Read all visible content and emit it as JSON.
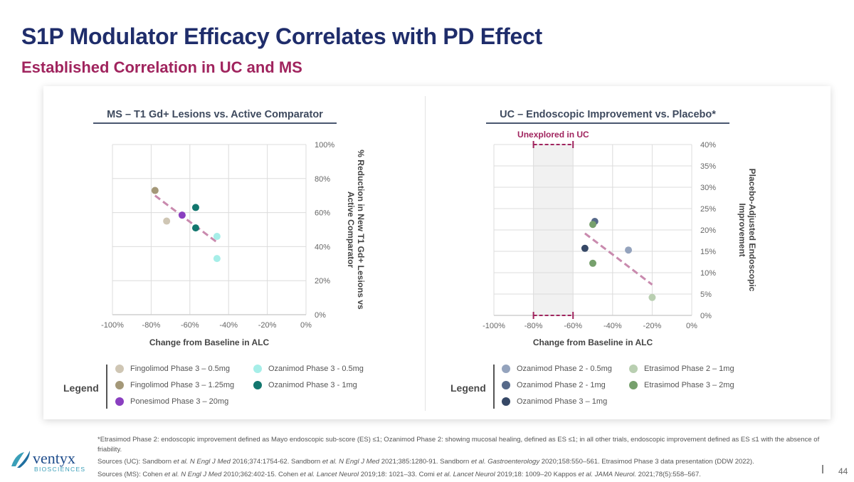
{
  "header": {
    "title": "S1P Modulator Efficacy Correlates with PD Effect",
    "subtitle": "Established Correlation in UC and MS"
  },
  "colors": {
    "title": "#1f2d6b",
    "subtitle": "#a0245e",
    "trendline": "#c98aae",
    "unexplored_marker": "#a0245e"
  },
  "chart_data": [
    {
      "id": "ms",
      "type": "scatter",
      "title": "MS – T1 Gd+ Lesions vs. Active Comparator",
      "xlabel": "Change from Baseline in ALC",
      "ylabel": "% Reduction in New T1 Gd+ Lesions vs Active Comparator",
      "xlim": [
        -100,
        0
      ],
      "ylim": [
        0,
        100
      ],
      "x_ticks": [
        -100,
        -80,
        -60,
        -40,
        -20,
        0
      ],
      "y_ticks": [
        0,
        20,
        40,
        60,
        80,
        100
      ],
      "x_tick_labels": [
        "-100%",
        "-80%",
        "-60%",
        "-40%",
        "-20%",
        "0%"
      ],
      "y_tick_labels": [
        "0%",
        "20%",
        "40%",
        "60%",
        "80%",
        "100%"
      ],
      "grid": true,
      "legend_title": "Legend",
      "legend_position": "bottom",
      "series": [
        {
          "name": "Fingolimod Phase 3 – 0.5mg",
          "color": "#cfc6b4",
          "points": [
            [
              -72,
              55
            ]
          ]
        },
        {
          "name": "Ozanimod Phase 3 - 0.5mg",
          "color": "#a6eee8",
          "points": [
            [
              -46,
              46
            ],
            [
              -46,
              33
            ]
          ]
        },
        {
          "name": "Fingolimod Phase 3 – 1.25mg",
          "color": "#a49878",
          "points": [
            [
              -78,
              73
            ]
          ]
        },
        {
          "name": "Ozanimod Phase 3 - 1mg",
          "color": "#12766e",
          "points": [
            [
              -57,
              63
            ],
            [
              -57,
              51
            ]
          ]
        },
        {
          "name": "Ponesimod Phase 3 – 20mg",
          "color": "#8a3fc0",
          "points": [
            [
              -64,
              58.5
            ]
          ]
        }
      ],
      "trendline": {
        "from": [
          -78,
          70
        ],
        "to": [
          -46.5,
          43
        ]
      }
    },
    {
      "id": "uc",
      "type": "scatter",
      "title": "UC – Endoscopic Improvement vs. Placebo*",
      "xlabel": "Change from Baseline in ALC",
      "ylabel": "Placebo-Adjusted Endoscopic Improvement",
      "xlim": [
        -100,
        0
      ],
      "ylim": [
        0,
        40
      ],
      "x_ticks": [
        -100,
        -80,
        -60,
        -40,
        -20,
        0
      ],
      "y_ticks": [
        0,
        5,
        10,
        15,
        20,
        25,
        30,
        35,
        40
      ],
      "x_tick_labels": [
        "-100%",
        "-80%",
        "-60%",
        "-40%",
        "-20%",
        "0%"
      ],
      "y_tick_labels": [
        "0%",
        "5%",
        "10%",
        "15%",
        "20%",
        "25%",
        "30%",
        "35%",
        "40%"
      ],
      "grid": true,
      "legend_title": "Legend",
      "legend_position": "bottom",
      "annotation": {
        "text": "Unexplored in UC",
        "x_range": [
          -80,
          -60
        ]
      },
      "series": [
        {
          "name": "Ozanimod Phase 2 - 0.5mg",
          "color": "#94a3bd",
          "points": [
            [
              -32,
              15.3
            ]
          ]
        },
        {
          "name": "Etrasimod Phase 2 – 1mg",
          "color": "#b9cfb1",
          "points": [
            [
              -20,
              4.2
            ]
          ]
        },
        {
          "name": "Ozanimod Phase 2 - 1mg",
          "color": "#566989",
          "points": [
            [
              -49,
              22
            ]
          ]
        },
        {
          "name": "Etrasimod Phase 3 – 2mg",
          "color": "#76a06c",
          "points": [
            [
              -50,
              21.3
            ],
            [
              -50,
              12.2
            ]
          ]
        },
        {
          "name": "Ozanimod Phase 3 – 1mg",
          "color": "#364866",
          "points": [
            [
              -54,
              15.7
            ]
          ]
        }
      ],
      "trendline": {
        "from": [
          -54,
          19.2
        ],
        "to": [
          -20,
          7.2
        ]
      }
    }
  ],
  "footnotes": {
    "asterisk": "*Etrasimod Phase 2: endoscopic improvement defined as Mayo endoscopic sub-score (ES) ≤1; Ozanimod Phase 2: showing mucosal healing, defined as ES ≤1; in all other trials, endoscopic improvement defined as ES ≤1 with the absence of friability.",
    "sources_uc_label": "Sources (UC): ",
    "sources_uc": [
      {
        "t": "Sandborn "
      },
      {
        "t": "et al. N Engl J Med",
        "i": true
      },
      {
        "t": " 2016;374:1754-62. Sandborn "
      },
      {
        "t": "et al. N Engl J Med",
        "i": true
      },
      {
        "t": " 2021;385:1280-91. Sandborn "
      },
      {
        "t": "et al. Gastroenterology",
        "i": true
      },
      {
        "t": " 2020;158:550–561. Etrasimod Phase 3 data presentation (DDW 2022)."
      }
    ],
    "sources_ms_label": "Sources (MS): ",
    "sources_ms": [
      {
        "t": "Cohen "
      },
      {
        "t": "et al. N Engl J Med",
        "i": true
      },
      {
        "t": " 2010;362:402-15. Cohen "
      },
      {
        "t": "et al. Lancet Neurol",
        "i": true
      },
      {
        "t": " 2019;18: 1021–33. Comi "
      },
      {
        "t": "et al. Lancet Neurol",
        "i": true
      },
      {
        "t": " 2019;18: 1009–20 Kappos "
      },
      {
        "t": "et al. JAMA Neurol.",
        "i": true
      },
      {
        "t": " 2021;78(5):558–567."
      }
    ]
  },
  "logo": {
    "name": "ventyx",
    "tagline": "BIOSCIENCES"
  },
  "page_number": "44"
}
